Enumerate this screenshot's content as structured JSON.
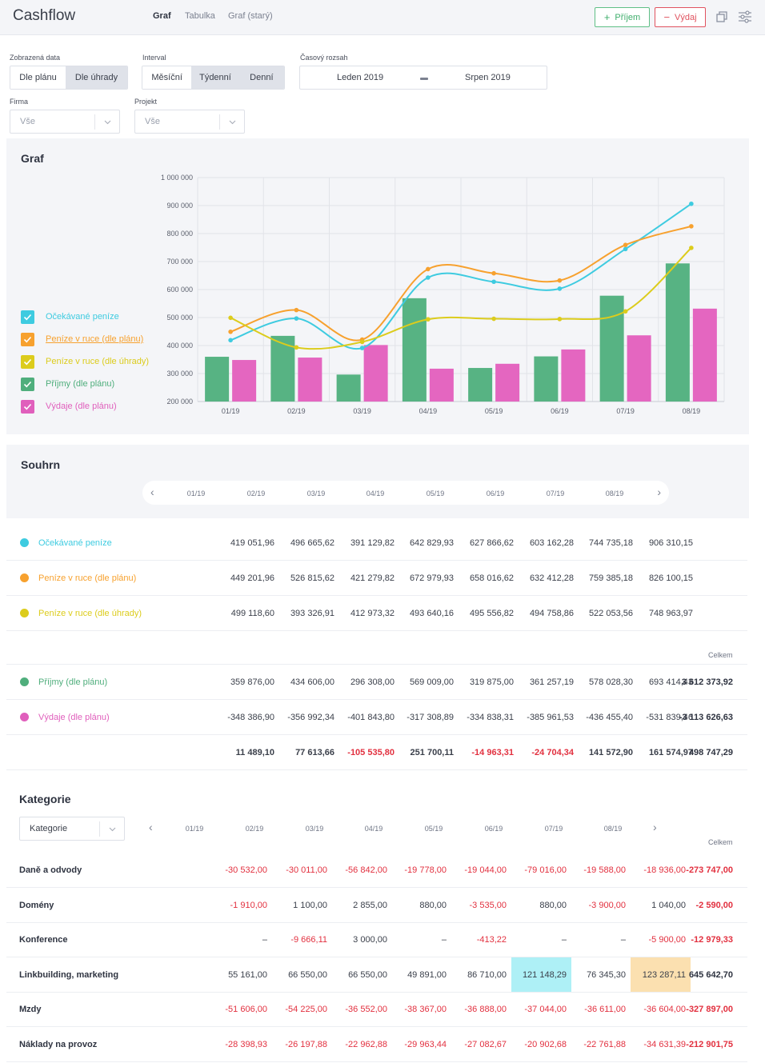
{
  "app": {
    "title": "Cashflow"
  },
  "nav": {
    "tabs": [
      "Graf",
      "Tabulka",
      "Graf (starý)"
    ]
  },
  "actions": {
    "income": "Příjem",
    "expense": "Výdaj"
  },
  "filters": {
    "data_label": "Zobrazená data",
    "data_options": [
      "Dle plánu",
      "Dle úhrady"
    ],
    "interval_label": "Interval",
    "interval_options": [
      "Měsíční",
      "Týdenní",
      "Denní"
    ],
    "range_label": "Časový rozsah",
    "range_from": "Leden 2019",
    "range_to": "Srpen 2019",
    "firma_label": "Firma",
    "firma_value": "Vše",
    "projekt_label": "Projekt",
    "projekt_value": "Vše"
  },
  "graf": {
    "title": "Graf",
    "legend": [
      {
        "label": "Očekávané peníze",
        "color": "#3ecbe0"
      },
      {
        "label": "Peníze v ruce (dle plánu)",
        "color": "#f7a12e"
      },
      {
        "label": "Peníze v ruce (dle úhrady)",
        "color": "#dccc1c"
      },
      {
        "label": "Příjmy (dle plánu)",
        "color": "#4fae7c"
      },
      {
        "label": "Výdaje (dle plánu)",
        "color": "#e05fbc"
      }
    ]
  },
  "chart_data": {
    "type": "bar",
    "categories": [
      "01/19",
      "02/19",
      "03/19",
      "04/19",
      "05/19",
      "06/19",
      "07/19",
      "08/19"
    ],
    "yticks": [
      "1 000 000",
      "900 000",
      "800 000",
      "700 000",
      "600 000",
      "500 000",
      "400 000",
      "300 000",
      "200 000"
    ],
    "ylim": [
      200000,
      1000000
    ],
    "series": [
      {
        "name": "Příjmy (dle plánu)",
        "kind": "bar",
        "color": "#57b383",
        "values": [
          359876,
          434606,
          296308,
          569009,
          319875,
          361257,
          578028,
          693414
        ]
      },
      {
        "name": "Výdaje (dle plánu)",
        "kind": "bar",
        "color": "#e466c0",
        "values": [
          348387,
          356992,
          401844,
          317309,
          334838,
          385962,
          436455,
          531839
        ]
      },
      {
        "name": "Očekávané peníze",
        "kind": "line",
        "color": "#3ecbe0",
        "values": [
          419052,
          496666,
          391130,
          642830,
          627867,
          603162,
          744735,
          906310
        ]
      },
      {
        "name": "Peníze v ruce (dle plánu)",
        "kind": "line",
        "color": "#f7a12e",
        "values": [
          449202,
          526816,
          421279,
          672980,
          658017,
          632412,
          759385,
          826100
        ]
      },
      {
        "name": "Peníze v ruce (dle úhrady)",
        "kind": "line",
        "color": "#dccc1c",
        "values": [
          499119,
          393327,
          412973,
          493640,
          495557,
          494759,
          522054,
          748964
        ]
      }
    ]
  },
  "summary": {
    "title": "Souhrn",
    "periods": [
      "01/19",
      "02/19",
      "03/19",
      "04/19",
      "05/19",
      "06/19",
      "07/19",
      "08/19"
    ],
    "total_label": "Celkem",
    "rows_top": [
      {
        "label": "Očekávané peníze",
        "color": "#3ecbe0",
        "values": [
          "419 051,96",
          "496 665,62",
          "391 129,82",
          "642 829,93",
          "627 866,62",
          "603 162,28",
          "744 735,18",
          "906 310,15"
        ]
      },
      {
        "label": "Peníze v ruce (dle plánu)",
        "color": "#f7a12e",
        "values": [
          "449 201,96",
          "526 815,62",
          "421 279,82",
          "672 979,93",
          "658 016,62",
          "632 412,28",
          "759 385,18",
          "826 100,15"
        ]
      },
      {
        "label": "Peníze v ruce (dle úhrady)",
        "color": "#dccc1c",
        "values": [
          "499 118,60",
          "393 326,91",
          "412 973,32",
          "493 640,16",
          "495 556,82",
          "494 758,86",
          "522 053,56",
          "748 963,97"
        ]
      }
    ],
    "rows_bottom": [
      {
        "label": "Příjmy (dle plánu)",
        "color": "#4fae7c",
        "values": [
          "359 876,00",
          "434 606,00",
          "296 308,00",
          "569 009,00",
          "319 875,00",
          "361 257,19",
          "578 028,30",
          "693 414,43"
        ],
        "total": "3 612 373,92"
      },
      {
        "label": "Výdaje (dle plánu)",
        "color": "#e05fbc",
        "values": [
          "-348 386,90",
          "-356 992,34",
          "-401 843,80",
          "-317 308,89",
          "-334 838,31",
          "-385 961,53",
          "-436 455,40",
          "-531 839,46"
        ],
        "total": "-3 113 626,63"
      }
    ],
    "net": {
      "values": [
        "11 489,10",
        "77 613,66",
        "-105 535,80",
        "251 700,11",
        "-14 963,31",
        "-24 704,34",
        "141 572,90",
        "161 574,97"
      ],
      "total": "498 747,29"
    }
  },
  "categories": {
    "title": "Kategorie",
    "select_value": "Kategorie",
    "periods": [
      "01/19",
      "02/19",
      "03/19",
      "04/19",
      "05/19",
      "06/19",
      "07/19",
      "08/19"
    ],
    "total_label": "Celkem",
    "rows": [
      {
        "label": "Daně a odvody",
        "values": [
          "-30 532,00",
          "-30 011,00",
          "-56 842,00",
          "-19 778,00",
          "-19 044,00",
          "-79 016,00",
          "-19 588,00",
          "-18 936,00"
        ],
        "total": "-273 747,00"
      },
      {
        "label": "Domény",
        "values": [
          "-1 910,00",
          "1 100,00",
          "2 855,00",
          "880,00",
          "-3 535,00",
          "880,00",
          "-3 900,00",
          "1 040,00"
        ],
        "total": "-2 590,00"
      },
      {
        "label": "Konference",
        "values": [
          "–",
          "-9 666,11",
          "3 000,00",
          "–",
          "-413,22",
          "–",
          "–",
          "-5 900,00"
        ],
        "total": "-12 979,33"
      },
      {
        "label": "Linkbuilding, marketing",
        "values": [
          "55 161,00",
          "66 550,00",
          "66 550,00",
          "49 891,00",
          "86 710,00",
          "121 148,29",
          "76 345,30",
          "123 287,11"
        ],
        "total": "645 642,70",
        "highlights": {
          "5": "#aef0f6",
          "7": "#fbe0b0"
        }
      },
      {
        "label": "Mzdy",
        "values": [
          "-51 606,00",
          "-54 225,00",
          "-36 552,00",
          "-38 367,00",
          "-36 888,00",
          "-37 044,00",
          "-36 611,00",
          "-36 604,00"
        ],
        "total": "-327 897,00"
      },
      {
        "label": "Náklady na provoz",
        "values": [
          "-28 398,93",
          "-26 197,88",
          "-22 962,88",
          "-29 963,44",
          "-27 082,67",
          "-20 902,68",
          "-22 761,88",
          "-34 631,39"
        ],
        "total": "-212 901,75"
      }
    ]
  }
}
